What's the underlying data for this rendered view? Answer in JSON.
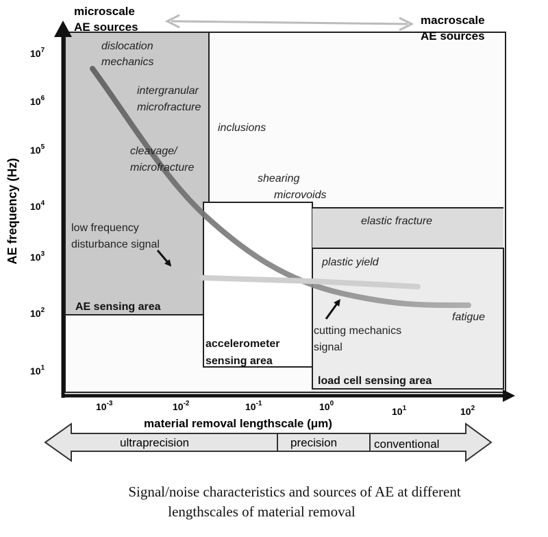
{
  "diagram": {
    "y_axis_label": "AE frequency (Hz)",
    "x_axis_label": "material removal lengthscale (μm)",
    "y_ticks": [
      {
        "base": "10",
        "exp": "7"
      },
      {
        "base": "10",
        "exp": "6"
      },
      {
        "base": "10",
        "exp": "5"
      },
      {
        "base": "10",
        "exp": "4"
      },
      {
        "base": "10",
        "exp": "3"
      },
      {
        "base": "10",
        "exp": "2"
      },
      {
        "base": "10",
        "exp": "1"
      }
    ],
    "x_ticks": [
      {
        "base": "10",
        "exp": "-3"
      },
      {
        "base": "10",
        "exp": "-2"
      },
      {
        "base": "10",
        "exp": "-1"
      },
      {
        "base": "10",
        "exp": "0"
      },
      {
        "base": "10",
        "exp": "1"
      },
      {
        "base": "10",
        "exp": "2"
      }
    ],
    "scale_labels": {
      "micro_line1": "microscale",
      "micro_line2": "AE sources",
      "macro_line1": "macroscale",
      "macro_line2": "AE sources"
    },
    "sources": {
      "dislocation_1": "dislocation",
      "dislocation_2": "mechanics",
      "intergranular_1": "intergranular",
      "intergranular_2": "microfracture",
      "inclusions": "inclusions",
      "cleavage_1": "cleavage/",
      "cleavage_2": "microfracture",
      "shearing_1": "shearing",
      "shearing_2": "microvoids",
      "elastic_fracture": "elastic fracture",
      "plastic_yield": "plastic yield",
      "fatigue": "fatigue"
    },
    "notes": {
      "low_freq_1": "low frequency",
      "low_freq_2": "disturbance signal",
      "cutting_1": "cutting mechanics",
      "cutting_2": "signal"
    },
    "areas": {
      "ae_sensing": "AE sensing area",
      "accelerometer_1": "accelerometer",
      "accelerometer_2": "sensing area",
      "load_cell": "load cell sensing area"
    },
    "regimes": {
      "ultraprecision": "ultraprecision",
      "precision": "precision",
      "conventional": "conventional"
    }
  },
  "caption": {
    "line1": "Signal/noise characteristics and sources of AE at different",
    "line2": "lengthscales of material removal"
  }
}
